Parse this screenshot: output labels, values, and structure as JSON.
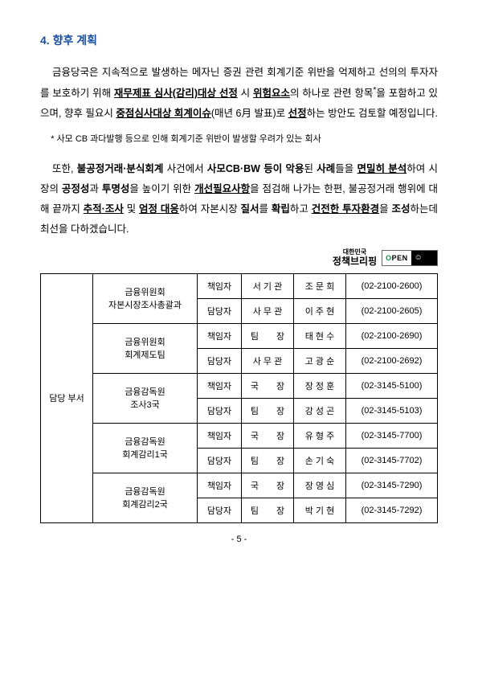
{
  "section": {
    "number": "4.",
    "title": "향후 계획"
  },
  "para1": {
    "t1": "금융당국은 지속적으로 발생하는 메자닌 증권 관련 회계기준 위반을 억제하고 선의의 투자자를 보호하기 위해 ",
    "b1": "재무제표 심사(감리)대상 선정",
    "t2": " 시 ",
    "b2": "위험요소",
    "t3": "의 하나로 관련 항목",
    "sup": "*",
    "t4": "을 포함하고 있으며, 향후 필요시 ",
    "b3": "중점심사대상 회계이슈",
    "t5": "(매년 6月 발표)로 ",
    "b4": "선정",
    "t6": "하는 방안도 검토할 예정입니다."
  },
  "note": "* 사모 CB 과다발행 등으로 인해 회계기준 위반이 발생할 우려가 있는 회사",
  "para2": {
    "t1": "또한, ",
    "b1": "불공정거래·분식회계",
    "t2": " 사건에서 ",
    "b2": "사모CB·BW 등이 악용",
    "t3": "된 ",
    "b3": "사례",
    "t4": "들을 ",
    "b4": "면밀히 분석",
    "t5": "하여 시장의 ",
    "b5": "공정성",
    "t6": "과 ",
    "b6": "투명성",
    "t7": "을 높이기 위한 ",
    "b7": "개선필요사항",
    "t8": "을 점검해 나가는 한편, 불공정거래 행위에 대해 끝까지 ",
    "b8": "추적·조사",
    "t9": " 및 ",
    "b9": "엄정 대응",
    "t10": "하여 자본시장 ",
    "b10": "질서",
    "t11": "를 ",
    "b11": "확립",
    "t12": "하고 ",
    "b12": "건전한 투자환경",
    "t13": "을 ",
    "b13": "조성",
    "t14": "하는데 최선을 다하겠습니다."
  },
  "logo": {
    "top": "대한민국",
    "main": "정책브리핑",
    "open_o": "O",
    "open_rest": "PEN"
  },
  "table": {
    "sideHeader": "담당 부서",
    "depts": [
      {
        "l1": "금융위원회",
        "l2": "자본시장조사총괄과"
      },
      {
        "l1": "금융위원회",
        "l2": "회계제도팀"
      },
      {
        "l1": "금융감독원",
        "l2": "조사3국"
      },
      {
        "l1": "금융감독원",
        "l2": "회계감리1국"
      },
      {
        "l1": "금융감독원",
        "l2": "회계감리2국"
      }
    ],
    "rows": [
      {
        "role": "책임자",
        "pos": "서 기 관",
        "name": "조 문 희",
        "phone": "(02-2100-2600)"
      },
      {
        "role": "담당자",
        "pos": "사 무 관",
        "name": "이 주 현",
        "phone": "(02-2100-2605)"
      },
      {
        "role": "책임자",
        "pos": "팀　　장",
        "name": "태 현 수",
        "phone": "(02-2100-2690)"
      },
      {
        "role": "담당자",
        "pos": "사 무 관",
        "name": "고 광 순",
        "phone": "(02-2100-2692)"
      },
      {
        "role": "책임자",
        "pos": "국　　장",
        "name": "장 정 훈",
        "phone": "(02-3145-5100)"
      },
      {
        "role": "담당자",
        "pos": "팀　　장",
        "name": "강 성 곤",
        "phone": "(02-3145-5103)"
      },
      {
        "role": "책임자",
        "pos": "국　　장",
        "name": "유 형 주",
        "phone": "(02-3145-7700)"
      },
      {
        "role": "담당자",
        "pos": "팀　　장",
        "name": "손 기 숙",
        "phone": "(02-3145-7702)"
      },
      {
        "role": "책임자",
        "pos": "국　　장",
        "name": "장 영 심",
        "phone": "(02-3145-7290)"
      },
      {
        "role": "담당자",
        "pos": "팀　　장",
        "name": "박 기 현",
        "phone": "(02-3145-7292)"
      }
    ]
  },
  "pageNumber": "- 5 -"
}
